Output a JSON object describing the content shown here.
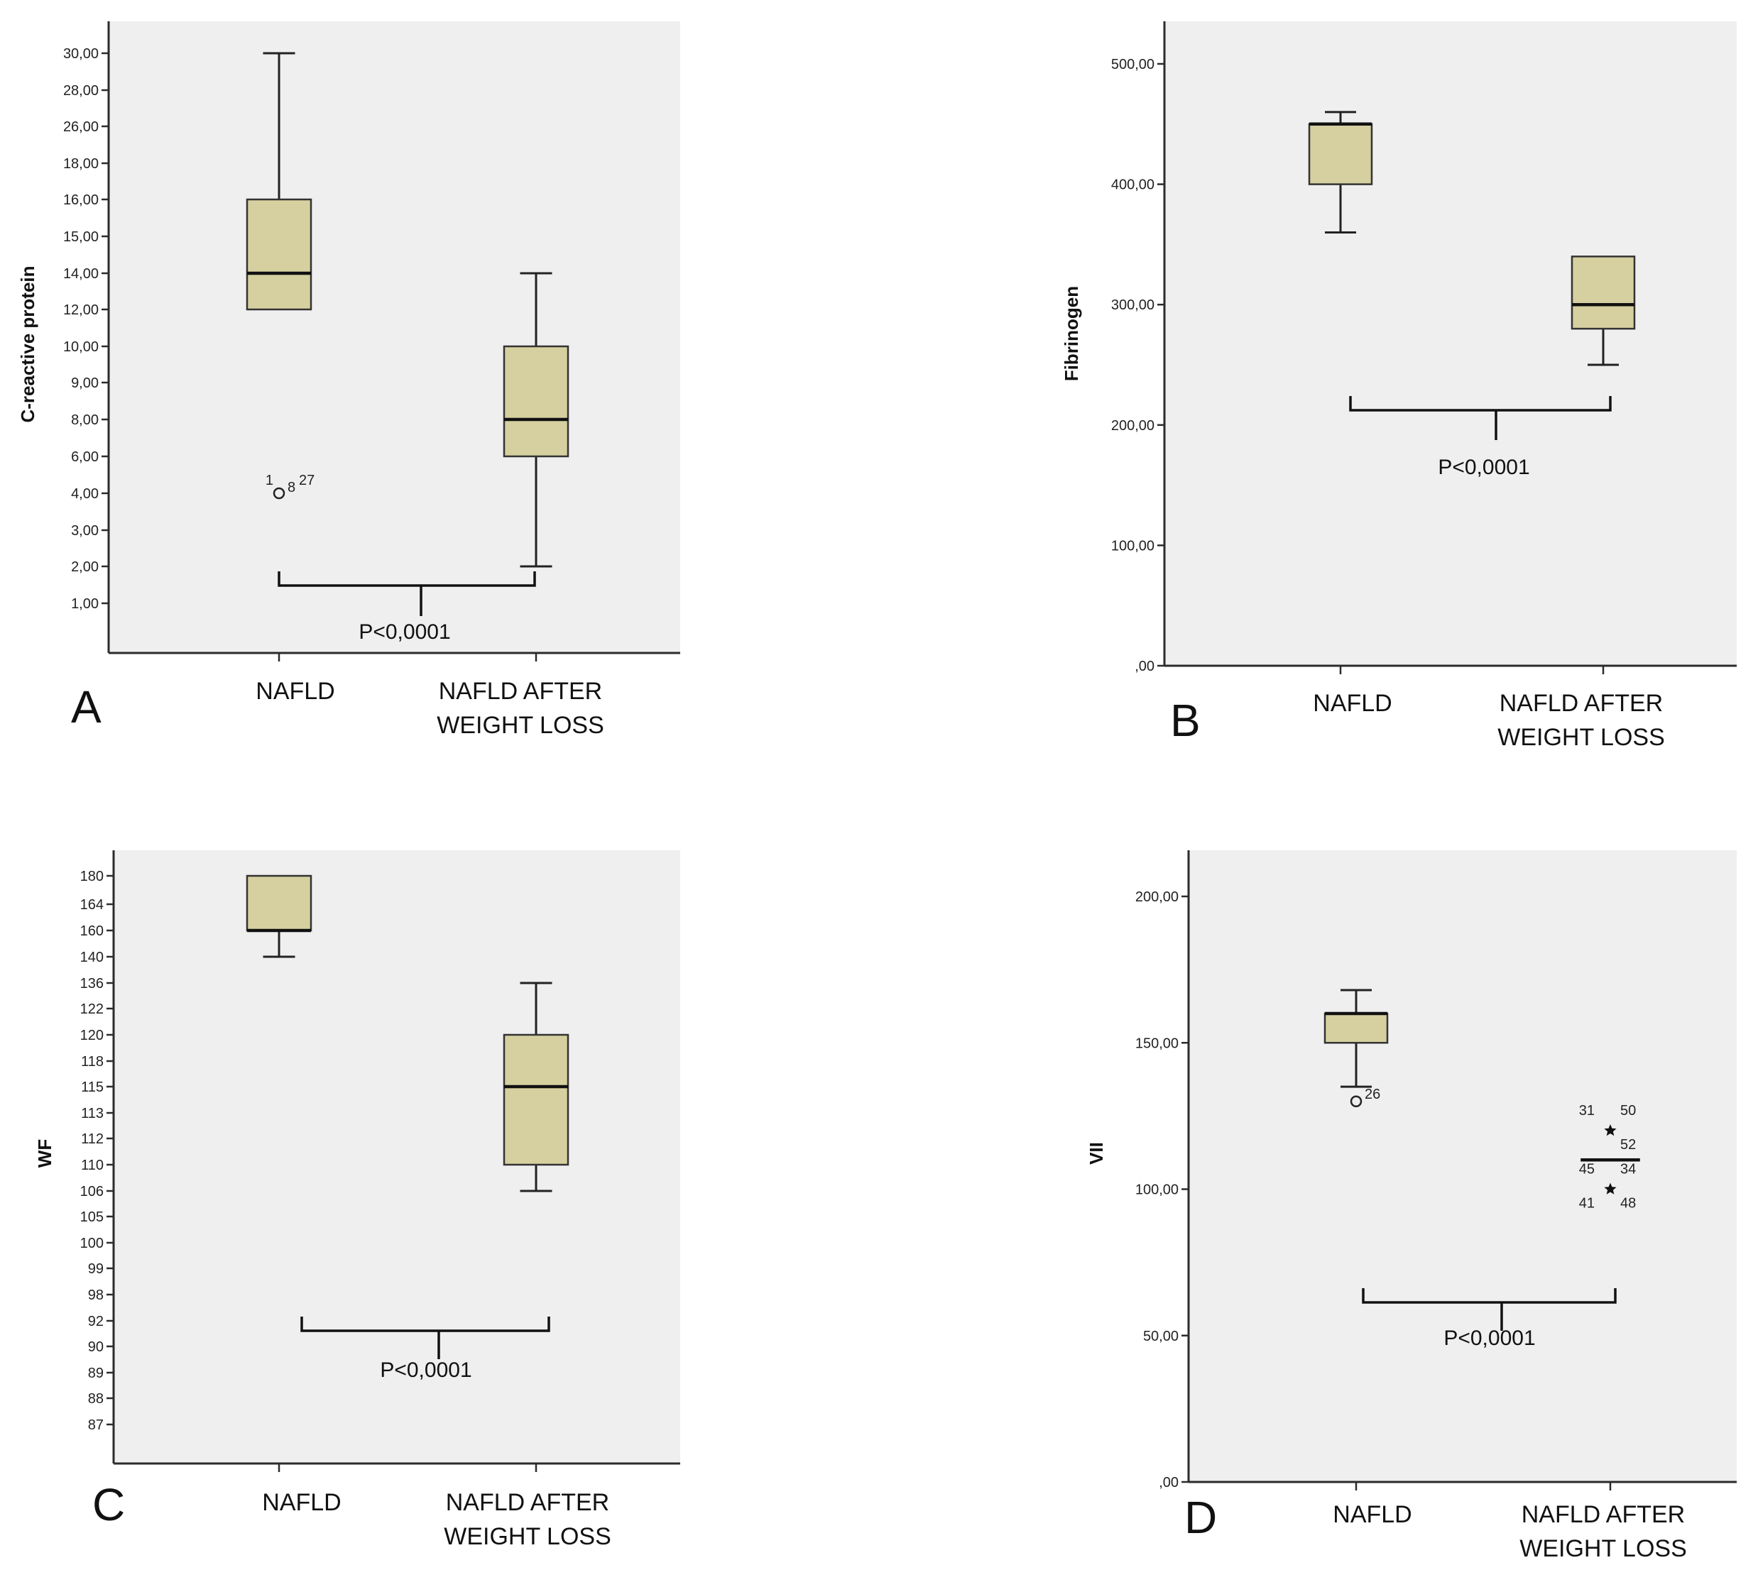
{
  "figure": {
    "box_fill": "#d6d0a0",
    "plot_bg": "#efefef"
  },
  "chart_data": [
    {
      "panel": "A",
      "type": "boxplot",
      "scale": "categorical-ticks",
      "ylabel": "C-reactive protein",
      "yticks": [
        "1,00",
        "2,00",
        "3,00",
        "4,00",
        "6,00",
        "8,00",
        "9,00",
        "10,00",
        "12,00",
        "14,00",
        "15,00",
        "16,00",
        "18,00",
        "26,00",
        "28,00",
        "30,00"
      ],
      "categories": [
        "NAFLD",
        "NAFLD AFTER WEIGHT LOSS"
      ],
      "series": [
        {
          "name": "NAFLD",
          "min": "12,00",
          "q1": "12,00",
          "median": "14,00",
          "q3": "16,00",
          "max": "30,00",
          "outliers": [
            {
              "value": "4,00",
              "marker": "circle",
              "labels": [
                {
                  "text": "1",
                  "pos": "top-left"
                },
                {
                  "text": "8",
                  "pos": "right"
                },
                {
                  "text": "27",
                  "pos": "top-right"
                }
              ]
            }
          ]
        },
        {
          "name": "NAFLD AFTER WEIGHT LOSS",
          "min": "2,00",
          "q1": "6,00",
          "median": "8,00",
          "q3": "10,00",
          "max": "14,00",
          "outliers": []
        }
      ],
      "annotation": "P<0,0001"
    },
    {
      "panel": "B",
      "type": "boxplot",
      "scale": "linear",
      "ylabel": "Fibrinogen",
      "ylim": [
        0,
        510
      ],
      "yticks": [
        0,
        100,
        200,
        300,
        400,
        500
      ],
      "ytick_labels": [
        ",00",
        "100,00",
        "200,00",
        "300,00",
        "400,00",
        "500,00"
      ],
      "categories": [
        "NAFLD",
        "NAFLD AFTER WEIGHT LOSS"
      ],
      "series": [
        {
          "name": "NAFLD",
          "min": 360,
          "q1": 400,
          "median": 450,
          "q3": 450,
          "max": 460,
          "outliers": []
        },
        {
          "name": "NAFLD AFTER WEIGHT LOSS",
          "min": 250,
          "q1": 280,
          "median": 300,
          "q3": 340,
          "max": 340,
          "outliers": []
        }
      ],
      "annotation": "P<0,0001"
    },
    {
      "panel": "C",
      "type": "boxplot",
      "scale": "categorical-ticks",
      "ylabel": "WF",
      "yticks": [
        "87",
        "88",
        "89",
        "90",
        "92",
        "98",
        "99",
        "100",
        "105",
        "106",
        "110",
        "112",
        "113",
        "115",
        "118",
        "120",
        "122",
        "136",
        "140",
        "160",
        "164",
        "180"
      ],
      "categories": [
        "NAFLD",
        "NAFLD AFTER WEIGHT LOSS"
      ],
      "series": [
        {
          "name": "NAFLD",
          "min": "140",
          "q1": "160",
          "median": "160",
          "q3": "180",
          "max": "180",
          "outliers": []
        },
        {
          "name": "NAFLD AFTER WEIGHT LOSS",
          "min": "106",
          "q1": "110",
          "median": "115",
          "q3": "120",
          "max": "136",
          "outliers": []
        }
      ],
      "annotation": "P<0,0001"
    },
    {
      "panel": "D",
      "type": "boxplot",
      "scale": "linear",
      "ylabel": "VII",
      "ylim": [
        0,
        216
      ],
      "yticks": [
        0,
        50,
        100,
        150,
        200
      ],
      "ytick_labels": [
        ",00",
        "50,00",
        "100,00",
        "150,00",
        "200,00"
      ],
      "categories": [
        "NAFLD",
        "NAFLD AFTER WEIGHT LOSS"
      ],
      "series": [
        {
          "name": "NAFLD",
          "min": 135,
          "q1": 150,
          "median": 160,
          "q3": 160,
          "max": 168,
          "outliers": [
            {
              "value": 130,
              "marker": "circle",
              "labels": [
                {
                  "text": "26",
                  "pos": "right"
                }
              ]
            }
          ]
        },
        {
          "name": "NAFLD AFTER WEIGHT LOSS",
          "min": 110,
          "q1": 110,
          "median": 110,
          "q3": 110,
          "max": 110,
          "outliers": [
            {
              "value": 120,
              "marker": "star",
              "labels": [
                {
                  "text": "31",
                  "pos": "top-left"
                },
                {
                  "text": "50",
                  "pos": "top-right"
                },
                {
                  "text": "52",
                  "pos": "bottom-right"
                }
              ]
            },
            {
              "value": 100,
              "marker": "star",
              "labels": [
                {
                  "text": "45",
                  "pos": "top-left"
                },
                {
                  "text": "34",
                  "pos": "top-right"
                },
                {
                  "text": "41",
                  "pos": "bottom-left"
                },
                {
                  "text": "48",
                  "pos": "bottom-right"
                }
              ]
            }
          ]
        }
      ],
      "annotation": "P<0,0001"
    }
  ]
}
